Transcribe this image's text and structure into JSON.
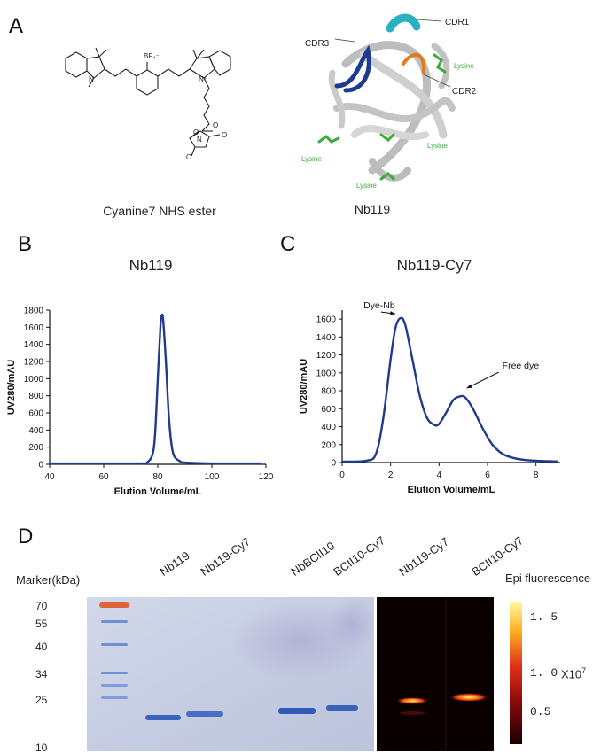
{
  "panels": {
    "A": {
      "letter": "A",
      "molecule_caption": "Cyanine7 NHS ester",
      "molecule_counterion": "BF₄⁻",
      "molecule_n": "N",
      "molecule_n_plus": "N⁺",
      "molecule_o_labels": [
        "O",
        "O",
        "O",
        "O",
        "N"
      ],
      "structure_caption": "Nb119",
      "structure_labels": {
        "cdr1": "CDR1",
        "cdr2": "CDR2",
        "cdr3": "CDR3",
        "lysine": "Lysine"
      }
    },
    "B": {
      "letter": "B",
      "title": "Nb119"
    },
    "C": {
      "letter": "C",
      "title": "Nb119-Cy7"
    },
    "D": {
      "letter": "D",
      "marker_title": "Marker(kDa)",
      "marker_values": [
        "70",
        "55",
        "40",
        "34",
        "25",
        "10"
      ],
      "lane_labels": [
        "Nb119",
        "Nb119-Cy7",
        "NbBCII10",
        "BCII10-Cy7"
      ],
      "fluor_lane_labels": [
        "Nb119-Cy7",
        "BCII10-Cy7"
      ],
      "epi_title": "Epi fluorescence",
      "colorbar_ticks": [
        "1. 5",
        "1. 0",
        "0.5"
      ],
      "colorbar_multiplier": "X10",
      "colorbar_exponent": "7",
      "colors": {
        "gel_bg": "#c9d1e4",
        "band": "#3e63bd",
        "marker_red": "#e0623a"
      }
    }
  },
  "chart_data": [
    {
      "type": "line",
      "xlabel": "Elution Volume/mL",
      "ylabel": "UV280/mAU",
      "xlim": [
        40,
        120
      ],
      "ylim": [
        0,
        1800
      ],
      "xticks": [
        40,
        60,
        80,
        100,
        120
      ],
      "yticks": [
        0,
        200,
        400,
        600,
        800,
        1000,
        1200,
        1400,
        1600,
        1800
      ],
      "grid": false,
      "series": [
        {
          "color": "#1f3a8f",
          "x": [
            40,
            60,
            74,
            76,
            78,
            79,
            80,
            81,
            81.5,
            82,
            83,
            84,
            85,
            86,
            88,
            90,
            100,
            110,
            118
          ],
          "y": [
            10,
            10,
            10,
            20,
            110,
            350,
            1000,
            1620,
            1740,
            1680,
            1200,
            600,
            250,
            100,
            40,
            20,
            10,
            10,
            10
          ]
        }
      ]
    },
    {
      "type": "line",
      "xlabel": "Elution Volume/mL",
      "ylabel": "UV280/mAU",
      "xlim": [
        0,
        9
      ],
      "ylim": [
        0,
        1700
      ],
      "xticks": [
        0,
        2,
        4,
        6,
        8
      ],
      "yticks": [
        0,
        200,
        400,
        600,
        800,
        1000,
        1200,
        1400,
        1600
      ],
      "grid": false,
      "annotations": [
        {
          "text": "Dye-Nb",
          "x": 2.3,
          "y": 1600
        },
        {
          "text": "Free dye",
          "x": 5.0,
          "y": 750
        }
      ],
      "series": [
        {
          "color": "#1f3a8f",
          "x": [
            0,
            1.0,
            1.4,
            1.7,
            2.0,
            2.2,
            2.4,
            2.6,
            2.9,
            3.2,
            3.5,
            3.8,
            4.0,
            4.3,
            4.6,
            4.9,
            5.1,
            5.4,
            5.8,
            6.2,
            6.6,
            7.0,
            7.5,
            8.0,
            8.5,
            8.9
          ],
          "y": [
            10,
            20,
            100,
            500,
            1150,
            1500,
            1610,
            1540,
            1150,
            750,
            500,
            420,
            430,
            560,
            700,
            740,
            720,
            600,
            380,
            200,
            100,
            55,
            30,
            20,
            15,
            12
          ]
        }
      ]
    }
  ]
}
